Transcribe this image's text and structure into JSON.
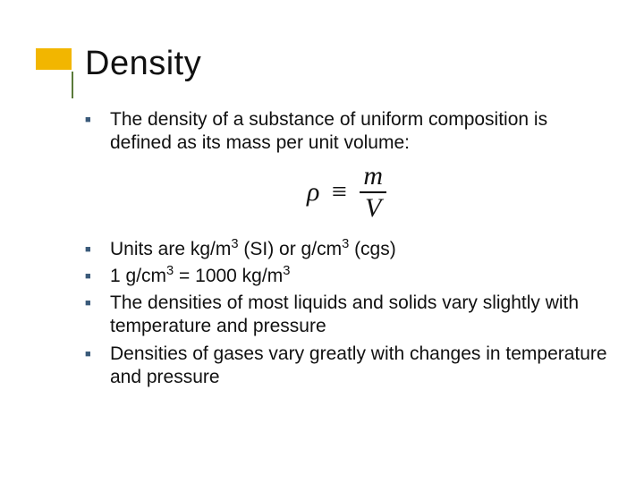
{
  "slide": {
    "title": "Density",
    "accent_color": "#f2b600",
    "rule_color": "#5a7a3a",
    "bullet_color": "#3a5a7a",
    "text_color": "#111111",
    "background_color": "#ffffff",
    "title_fontsize": 38,
    "body_fontsize": 21,
    "formula": {
      "lhs": "ρ",
      "relation": "≡",
      "numerator": "m",
      "denominator": "V",
      "font_family": "Times New Roman",
      "fontsize": 30
    },
    "bullets": [
      {
        "text": "The density of a substance of uniform composition is defined as its mass per unit volume:",
        "followed_by_formula": true
      },
      {
        "html": "Units are kg/m<sup>3</sup> (SI) or g/cm<sup>3</sup> (cgs)"
      },
      {
        "html": "1 g/cm<sup>3</sup> = 1000 kg/m<sup>3</sup>"
      },
      {
        "text": "The densities of most liquids and solids vary slightly with temperature and pressure"
      },
      {
        "text": "Densities of gases vary greatly with changes in temperature and pressure"
      }
    ]
  }
}
